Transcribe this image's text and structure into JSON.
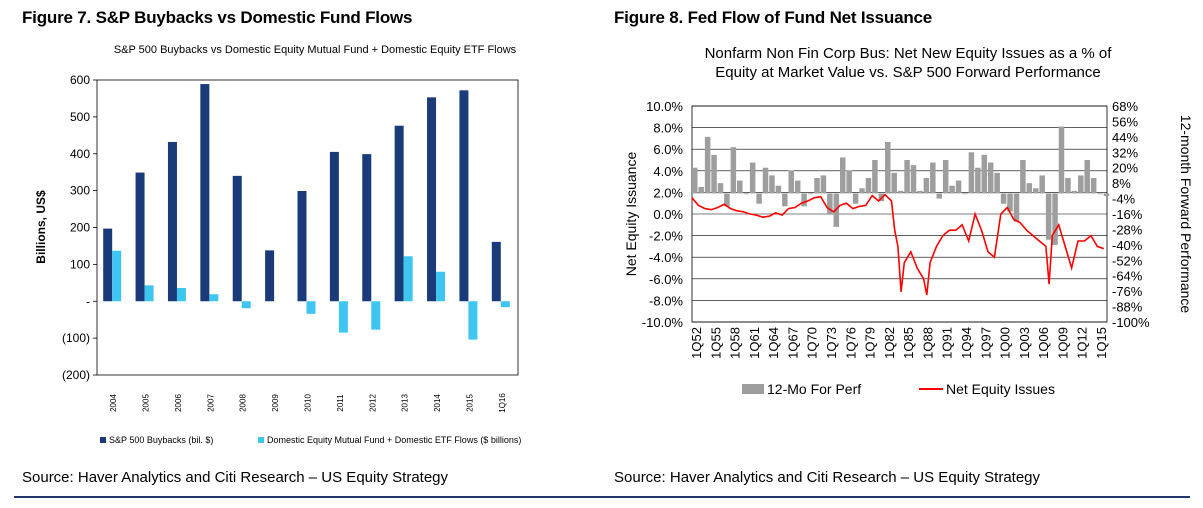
{
  "figures": {
    "fig7_title": "Figure 7. S&P Buybacks vs Domestic Fund Flows",
    "fig8_title": "Figure 8. Fed Flow of Fund Net Issuance"
  },
  "sources": {
    "left": "Source: Haver Analytics and Citi Research – US Equity Strategy",
    "right": "Source: Haver Analytics and Citi Research – US Equity Strategy"
  },
  "colors": {
    "buybacks": "#1b3a7a",
    "flows": "#3ec6f0",
    "perf": "#9e9e9e",
    "issues": "#ff0000",
    "rule": "#1f3a68"
  },
  "chart_data": [
    {
      "type": "bar",
      "title": "S&P 500 Buybacks vs Domestic Equity Mutual Fund + Domestic Equity ETF Flows",
      "ylabel": "Billions, US$",
      "xlabel": "",
      "ylim": [
        -200,
        600
      ],
      "yticks": [
        -200,
        -100,
        0,
        100,
        200,
        300,
        400,
        500,
        600
      ],
      "ytick_labels": [
        "(200)",
        "(100)",
        "-",
        "100",
        "200",
        "300",
        "400",
        "500",
        "600"
      ],
      "categories": [
        "2004",
        "2005",
        "2006",
        "2007",
        "2008",
        "2009",
        "2010",
        "2011",
        "2012",
        "2013",
        "2014",
        "2015",
        "1Q16"
      ],
      "series": [
        {
          "name": "S&P 500 Buybacks (bil. $)",
          "values": [
            197,
            349,
            432,
            589,
            340,
            138,
            299,
            405,
            399,
            476,
            553,
            572,
            161
          ]
        },
        {
          "name": "Domestic Equity Mutual Fund + Domestic ETF Flows ($ billions)",
          "values": [
            137,
            43,
            36,
            19,
            -19,
            0,
            -34,
            -85,
            -77,
            122,
            80,
            -104,
            -16
          ]
        }
      ],
      "legend": "bottom"
    },
    {
      "type": "line",
      "title": "Nonfarm Non Fin Corp Bus: Net New Equity Issues  as a % of Equity at Market Value vs. S&P 500 Forward Performance",
      "title_lines": [
        "Nonfarm Non Fin Corp Bus: Net New Equity Issues  as a % of",
        "Equity at Market Value vs. S&P 500 Forward Performance"
      ],
      "ylabel": "Net Equity Issuance",
      "y2label": "12-month Forward Performance",
      "ylim": [
        -10,
        10
      ],
      "y2lim": [
        -100,
        68
      ],
      "yticks": [
        "10.0%",
        "8.0%",
        "6.0%",
        "4.0%",
        "2.0%",
        "0.0%",
        "-2.0%",
        "-4.0%",
        "-6.0%",
        "-8.0%",
        "-10.0%"
      ],
      "y2ticks": [
        "68%",
        "56%",
        "44%",
        "32%",
        "20%",
        "8%",
        "-4%",
        "-16%",
        "-28%",
        "-40%",
        "-52%",
        "-64%",
        "-76%",
        "-88%",
        "-100%"
      ],
      "x_range": [
        1952.0,
        2016.5
      ],
      "xtick_labels": [
        "1Q52",
        "1Q55",
        "1Q58",
        "1Q61",
        "1Q64",
        "1Q67",
        "1Q70",
        "1Q73",
        "1Q76",
        "1Q79",
        "1Q82",
        "1Q85",
        "1Q88",
        "1Q91",
        "1Q94",
        "1Q97",
        "1Q00",
        "1Q03",
        "1Q06",
        "1Q09",
        "1Q12",
        "1Q15"
      ],
      "series": [
        {
          "name": "12-Mo For Perf",
          "style": "bar",
          "x": [
            1952,
            1953,
            1954,
            1955,
            1956,
            1957,
            1958,
            1959,
            1960,
            1961,
            1962,
            1963,
            1964,
            1965,
            1966,
            1967,
            1968,
            1969,
            1970,
            1971,
            1972,
            1973,
            1974,
            1975,
            1976,
            1977,
            1978,
            1979,
            1980,
            1981,
            1982,
            1983,
            1984,
            1985,
            1986,
            1987,
            1988,
            1989,
            1990,
            1991,
            1992,
            1993,
            1994,
            1995,
            1996,
            1997,
            1998,
            1999,
            2000,
            2001,
            2002,
            2003,
            2004,
            2005,
            2006,
            2007,
            2008,
            2009,
            2010,
            2011,
            2012,
            2013,
            2014,
            2015,
            2016
          ],
          "y": [
            20,
            5,
            44,
            30,
            8,
            -10,
            36,
            10,
            0,
            24,
            -8,
            20,
            14,
            6,
            -10,
            18,
            10,
            -10,
            0,
            12,
            14,
            -16,
            -26,
            28,
            18,
            -8,
            4,
            12,
            26,
            -6,
            40,
            16,
            2,
            26,
            22,
            2,
            12,
            24,
            -4,
            26,
            6,
            10,
            0,
            32,
            20,
            30,
            24,
            16,
            -8,
            -14,
            -22,
            26,
            8,
            4,
            14,
            -36,
            -40,
            52,
            12,
            2,
            14,
            26,
            12,
            0,
            -2
          ]
        },
        {
          "name": "Net Equity Issues",
          "style": "line",
          "x": [
            1952,
            1953,
            1954,
            1955,
            1956,
            1957,
            1958,
            1959,
            1960,
            1961,
            1962,
            1963,
            1964,
            1965,
            1966,
            1967,
            1968,
            1969,
            1970,
            1971,
            1972,
            1973,
            1974,
            1975,
            1976,
            1977,
            1978,
            1979,
            1980,
            1981,
            1982,
            1983,
            1983.5,
            1984,
            1984.5,
            1985,
            1986,
            1987,
            1988,
            1988.5,
            1989,
            1990,
            1991,
            1992,
            1993,
            1994,
            1995,
            1996,
            1997,
            1998,
            1999,
            2000,
            2001,
            2002,
            2003,
            2004,
            2005,
            2006,
            2007,
            2007.5,
            2008,
            2009,
            2010,
            2011,
            2012,
            2013,
            2014,
            2015,
            2016
          ],
          "y": [
            1.5,
            0.8,
            0.5,
            0.4,
            0.6,
            0.9,
            0.5,
            0.3,
            0.2,
            0.0,
            -0.1,
            -0.3,
            -0.2,
            0.1,
            -0.1,
            0.5,
            0.6,
            1.0,
            1.2,
            1.5,
            1.6,
            0.6,
            0.2,
            0.8,
            1.0,
            0.5,
            0.7,
            0.8,
            1.7,
            1.2,
            1.8,
            1.2,
            -1.5,
            -3.0,
            -7.2,
            -4.5,
            -3.5,
            -5.0,
            -6.0,
            -7.5,
            -4.5,
            -3.0,
            -2.0,
            -1.5,
            -1.5,
            -1.0,
            -2.5,
            0.0,
            -1.5,
            -3.5,
            -4.0,
            0.0,
            0.6,
            -0.5,
            -0.8,
            -1.5,
            -2.0,
            -2.5,
            -3.0,
            -6.5,
            -2.0,
            -1.0,
            -3.0,
            -5.0,
            -2.5,
            -2.5,
            -2.0,
            -3.0,
            -3.2
          ]
        }
      ],
      "legend": "bottom"
    }
  ]
}
